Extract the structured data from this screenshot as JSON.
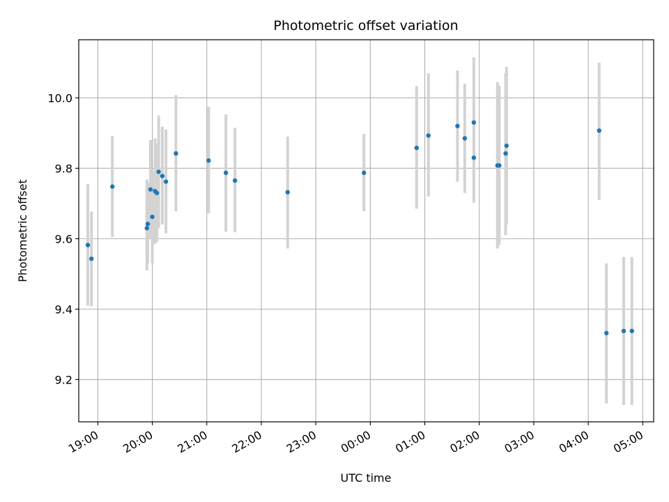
{
  "chart_data": {
    "type": "scatter",
    "title": "Photometric offset variation",
    "xlabel": "UTC time",
    "ylabel": "Photometric offset",
    "xlim": [
      "18:39",
      "05:12"
    ],
    "ylim": [
      9.08,
      10.165
    ],
    "x_ticks": [
      "19:00",
      "20:00",
      "21:00",
      "22:00",
      "23:00",
      "00:00",
      "01:00",
      "02:00",
      "03:00",
      "04:00",
      "05:00"
    ],
    "y_ticks": [
      9.2,
      9.4,
      9.6,
      9.8,
      10.0
    ],
    "grid": true,
    "point_color": "#1f77b4",
    "errorbar_color": "#d3d3d3",
    "series": [
      {
        "points": [
          {
            "x": "18:49",
            "y": 9.582,
            "err_lo": 9.41,
            "err_hi": 9.755
          },
          {
            "x": "18:53",
            "y": 9.543,
            "err_lo": 9.408,
            "err_hi": 9.677
          },
          {
            "x": "19:16",
            "y": 9.748,
            "err_lo": 9.605,
            "err_hi": 9.892
          },
          {
            "x": "19:54",
            "y": 9.63,
            "err_lo": 9.51,
            "err_hi": 9.768
          },
          {
            "x": "19:55",
            "y": 9.642,
            "err_lo": 9.53,
            "err_hi": 9.76
          },
          {
            "x": "19:58",
            "y": 9.74,
            "err_lo": 9.6,
            "err_hi": 9.88
          },
          {
            "x": "20:00",
            "y": 9.662,
            "err_lo": 9.53,
            "err_hi": 9.79
          },
          {
            "x": "20:03",
            "y": 9.735,
            "err_lo": 9.585,
            "err_hi": 9.885
          },
          {
            "x": "20:05",
            "y": 9.73,
            "err_lo": 9.59,
            "err_hi": 9.87
          },
          {
            "x": "20:07",
            "y": 9.79,
            "err_lo": 9.63,
            "err_hi": 9.95
          },
          {
            "x": "20:11",
            "y": 9.778,
            "err_lo": 9.64,
            "err_hi": 9.918
          },
          {
            "x": "20:15",
            "y": 9.762,
            "err_lo": 9.615,
            "err_hi": 9.91
          },
          {
            "x": "20:26",
            "y": 9.842,
            "err_lo": 9.678,
            "err_hi": 10.008
          },
          {
            "x": "21:02",
            "y": 9.822,
            "err_lo": 9.672,
            "err_hi": 9.975
          },
          {
            "x": "21:21",
            "y": 9.787,
            "err_lo": 9.62,
            "err_hi": 9.953
          },
          {
            "x": "21:31",
            "y": 9.765,
            "err_lo": 9.618,
            "err_hi": 9.915
          },
          {
            "x": "22:29",
            "y": 9.732,
            "err_lo": 9.572,
            "err_hi": 9.89
          },
          {
            "x": "23:53",
            "y": 9.787,
            "err_lo": 9.678,
            "err_hi": 9.898
          },
          {
            "x": "00:51",
            "y": 9.858,
            "err_lo": 9.685,
            "err_hi": 10.033
          },
          {
            "x": "01:04",
            "y": 9.893,
            "err_lo": 9.72,
            "err_hi": 10.07
          },
          {
            "x": "01:36",
            "y": 9.92,
            "err_lo": 9.762,
            "err_hi": 10.078
          },
          {
            "x": "01:44",
            "y": 9.885,
            "err_lo": 9.73,
            "err_hi": 10.04
          },
          {
            "x": "01:54",
            "y": 9.93,
            "err_lo": 9.74,
            "err_hi": 10.115
          },
          {
            "x": "01:54",
            "y": 9.83,
            "err_lo": 9.702,
            "err_hi": 9.953
          },
          {
            "x": "02:20",
            "y": 9.808,
            "err_lo": 9.572,
            "err_hi": 10.045
          },
          {
            "x": "02:22",
            "y": 9.808,
            "err_lo": 9.582,
            "err_hi": 10.035
          },
          {
            "x": "02:29",
            "y": 9.842,
            "err_lo": 9.61,
            "err_hi": 10.07
          },
          {
            "x": "02:30",
            "y": 9.864,
            "err_lo": 9.64,
            "err_hi": 10.088
          },
          {
            "x": "04:12",
            "y": 9.907,
            "err_lo": 9.71,
            "err_hi": 10.1
          },
          {
            "x": "04:20",
            "y": 9.332,
            "err_lo": 9.132,
            "err_hi": 9.53
          },
          {
            "x": "04:39",
            "y": 9.338,
            "err_lo": 9.128,
            "err_hi": 9.548
          },
          {
            "x": "04:48",
            "y": 9.338,
            "err_lo": 9.128,
            "err_hi": 9.548
          }
        ]
      }
    ]
  }
}
